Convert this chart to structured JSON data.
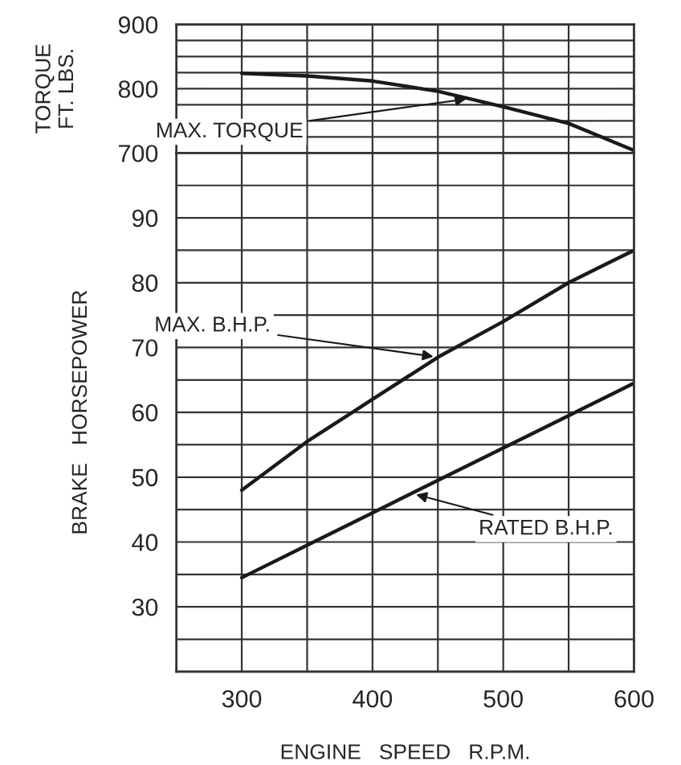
{
  "chart_data": [
    {
      "type": "line",
      "ylabel": "TORQUE\nFT. LBS.",
      "xlim": [
        250,
        600
      ],
      "ylim": [
        700,
        900
      ],
      "grid": true,
      "tick_labels": "y",
      "line_style": "solid",
      "xticks": [
        300,
        350,
        400,
        450,
        500,
        550,
        600
      ],
      "yticks": [
        700,
        {
          "value": 725,
          "label": null
        },
        {
          "value": 750,
          "label": null
        },
        {
          "value": 775,
          "label": null
        },
        800,
        {
          "value": 825,
          "label": null
        },
        {
          "value": 850,
          "label": null
        },
        {
          "value": 875,
          "label": null
        },
        900
      ],
      "series": [
        {
          "color": "#1a1a1a",
          "x": [
            300,
            350,
            400,
            450,
            500,
            550,
            600
          ],
          "values": [
            824,
            820,
            812,
            796,
            772,
            746,
            704
          ]
        }
      ],
      "annotations": [
        {
          "text": "MAX. TORQUE",
          "x": 475,
          "y": 785
        }
      ]
    },
    {
      "type": "line",
      "ylabel": "BRAKE   HORSEPOWER",
      "xlabel": "ENGINE   SPEED   R.P.M.",
      "xlim": [
        250,
        600
      ],
      "ylim": [
        20,
        100
      ],
      "grid": true,
      "line_style": "solid",
      "xticks": [
        300,
        {
          "value": 350,
          "label": null
        },
        400,
        {
          "value": 450,
          "label": null
        },
        500,
        {
          "value": 550,
          "label": null
        },
        600
      ],
      "yticks": [
        {
          "value": 20,
          "label": null
        },
        {
          "value": 25,
          "label": null
        },
        30,
        {
          "value": 35,
          "label": null
        },
        40,
        {
          "value": 45,
          "label": null
        },
        50,
        {
          "value": 55,
          "label": null
        },
        60,
        {
          "value": 65,
          "label": null
        },
        70,
        {
          "value": 75,
          "label": null
        },
        80,
        {
          "value": 85,
          "label": null
        },
        90,
        {
          "value": 95,
          "label": null
        },
        {
          "value": 100,
          "label": null
        }
      ],
      "series": [
        {
          "color": "#1a1a1a",
          "x": [
            300,
            350,
            400,
            450,
            500,
            550,
            600
          ],
          "values": [
            48,
            55.5,
            62,
            68.5,
            74,
            80,
            85
          ]
        },
        {
          "color": "#1a1a1a",
          "x": [
            300,
            350,
            400,
            450,
            500,
            550,
            600
          ],
          "values": [
            34.5,
            39.5,
            44.5,
            49.5,
            54.5,
            59.5,
            64.5
          ]
        }
      ],
      "annotations": [
        {
          "text": "MAX. B.H.P.",
          "x": 450,
          "y": 68.5
        },
        {
          "text": "RATED B.H.P.",
          "x": 430,
          "y": 47.5
        }
      ]
    }
  ]
}
